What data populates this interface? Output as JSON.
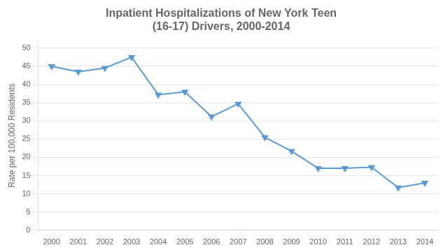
{
  "chart_data": {
    "type": "line",
    "title": "Inpatient Hospitalizations of New York Teen\n(16-17) Drivers, 2000-2014",
    "ylabel": "Rate per 100,000 Residents",
    "x": [
      2000,
      2001,
      2002,
      2003,
      2004,
      2005,
      2006,
      2007,
      2008,
      2009,
      2010,
      2011,
      2012,
      2013,
      2014
    ],
    "values": [
      45.0,
      43.5,
      44.5,
      47.5,
      37.2,
      38.0,
      31.2,
      34.7,
      25.5,
      21.7,
      17.0,
      17.0,
      17.3,
      11.7,
      13.0
    ],
    "color": "#5B9BD5",
    "marker": "triangle_down",
    "xlim": [
      1999.5,
      2014.5
    ],
    "xticks": [
      2000,
      2001,
      2002,
      2003,
      2004,
      2005,
      2006,
      2007,
      2008,
      2009,
      2010,
      2011,
      2012,
      2013,
      2014
    ],
    "ylim": [
      0,
      52
    ],
    "yticks": [
      0,
      5,
      10,
      15,
      20,
      25,
      30,
      35,
      40,
      45,
      50
    ],
    "grid": "y"
  }
}
